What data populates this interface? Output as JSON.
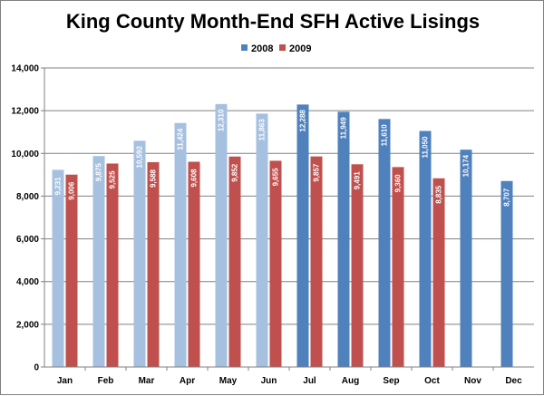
{
  "chart_data": {
    "type": "bar",
    "title": "King County Month-End SFH Active Lisings",
    "xlabel": "",
    "ylabel": "",
    "ylim": [
      0,
      14000
    ],
    "yticks": [
      "0",
      "2,000",
      "4,000",
      "6,000",
      "8,000",
      "10,000",
      "12,000",
      "14,000"
    ],
    "grid": true,
    "legend_position": "top",
    "categories": [
      "Jan",
      "Feb",
      "Mar",
      "Apr",
      "May",
      "Jun",
      "Jul",
      "Aug",
      "Sep",
      "Oct",
      "Nov",
      "Dec"
    ],
    "series": [
      {
        "name": "2008",
        "color": "#4f81bd",
        "faded_color": "#a6c0e0",
        "faded_months": [
          "Jan",
          "Feb",
          "Mar",
          "Apr",
          "May",
          "Jun"
        ],
        "values": [
          9231,
          9875,
          10592,
          11424,
          12310,
          11863,
          12288,
          11949,
          11610,
          11050,
          10174,
          8707
        ],
        "labels": [
          "9,231",
          "9,875",
          "10,592",
          "11,424",
          "12,310",
          "11,863",
          "12,288",
          "11,949",
          "11,610",
          "11,050",
          "10,174",
          "8,707"
        ]
      },
      {
        "name": "2009",
        "color": "#c0504d",
        "values": [
          9006,
          9525,
          9588,
          9608,
          9852,
          9655,
          9857,
          9491,
          9360,
          8835,
          null,
          null
        ],
        "labels": [
          "9,006",
          "9,525",
          "9,588",
          "9,608",
          "9,852",
          "9,655",
          "9,857",
          "9,491",
          "9,360",
          "8,835",
          "",
          ""
        ]
      }
    ]
  }
}
